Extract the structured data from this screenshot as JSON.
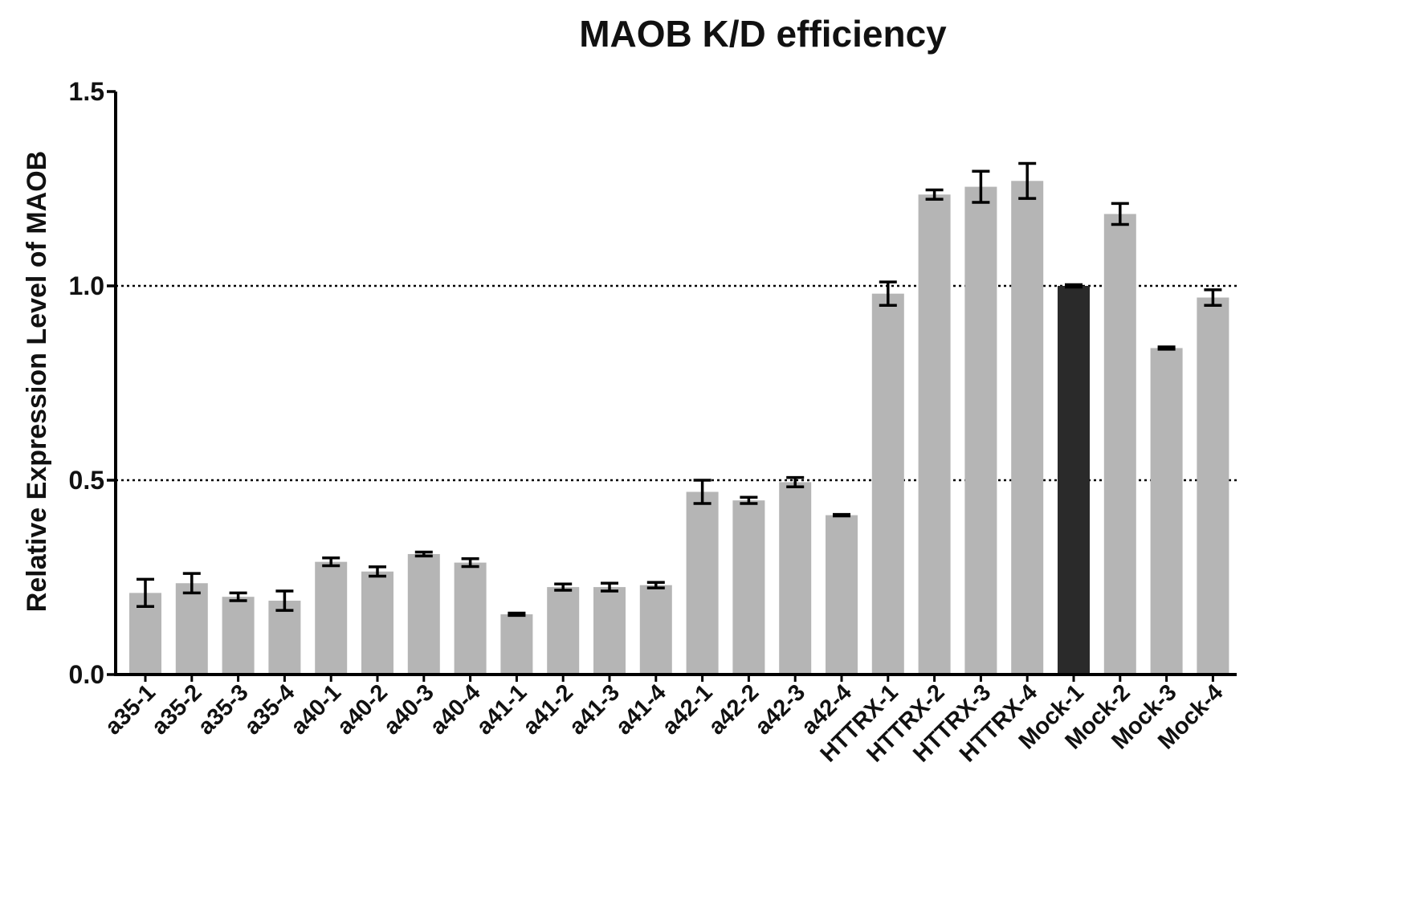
{
  "chart_data": {
    "type": "bar",
    "title": "MAOB K/D efficiency",
    "ylabel": "Relative Expression Level of MAOB",
    "xlabel": "",
    "ylim": [
      0,
      1.5
    ],
    "yticks": [
      "0.0",
      "0.5",
      "1.0",
      "1.5"
    ],
    "reference_lines": [
      0.5,
      1.0
    ],
    "categories": [
      "a35-1",
      "a35-2",
      "a35-3",
      "a35-4",
      "a40-1",
      "a40-2",
      "a40-3",
      "a40-4",
      "a41-1",
      "a41-2",
      "a41-3",
      "a41-4",
      "a42-1",
      "a42-2",
      "a42-3",
      "a42-4",
      "HTTRX-1",
      "HTTRX-2",
      "HTTRX-3",
      "HTTRX-4",
      "Mock-1",
      "Mock-2",
      "Mock-3",
      "Mock-4"
    ],
    "values": [
      0.21,
      0.235,
      0.2,
      0.19,
      0.29,
      0.265,
      0.31,
      0.288,
      0.155,
      0.225,
      0.225,
      0.23,
      0.47,
      0.448,
      0.495,
      0.41,
      0.98,
      1.235,
      1.255,
      1.27,
      1.0,
      1.185,
      0.84,
      0.97
    ],
    "errors": [
      0.035,
      0.025,
      0.01,
      0.025,
      0.01,
      0.012,
      0.005,
      0.01,
      0.003,
      0.008,
      0.01,
      0.007,
      0.03,
      0.008,
      0.012,
      0.002,
      0.03,
      0.012,
      0.04,
      0.045,
      0.003,
      0.027,
      0.003,
      0.02
    ],
    "colors": {
      "bar": "#b5b5b5",
      "highlight_bar": "#2a2a2a",
      "highlight_category": "Mock-1",
      "axis": "#000000",
      "error_bar": "#000000",
      "reference_line": "#000000"
    },
    "grid": false,
    "legend": "none"
  }
}
